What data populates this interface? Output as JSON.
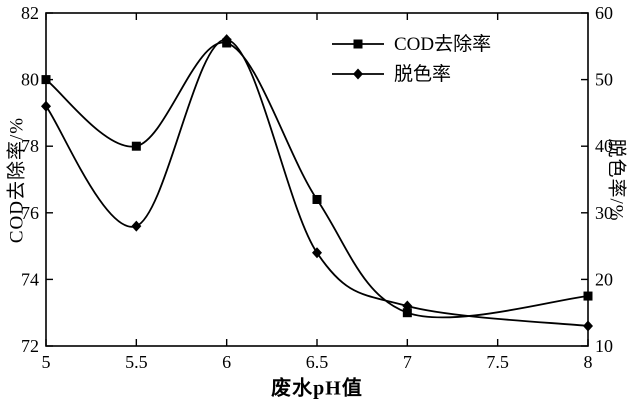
{
  "labels": {
    "xlabel": "废水pH值",
    "left_ylabel": "COD去除率/%",
    "right_ylabel": "脱色率/%"
  },
  "chart_data": {
    "type": "line",
    "title": "",
    "xlabel": "废水pH值",
    "xlim": [
      5,
      8
    ],
    "x_ticks": [
      5,
      5.5,
      6,
      6.5,
      7,
      7.5,
      8
    ],
    "x_tick_labels": [
      "5",
      "5.5",
      "6",
      "6.5",
      "7",
      "7.5",
      "8"
    ],
    "left_axis": {
      "label": "COD去除率/%",
      "lim": [
        72,
        82
      ],
      "ticks": [
        72,
        74,
        76,
        78,
        80,
        82
      ]
    },
    "right_axis": {
      "label": "脱色率/%",
      "lim": [
        10,
        60
      ],
      "ticks": [
        10,
        20,
        30,
        40,
        50,
        60
      ]
    },
    "x": [
      5,
      5.5,
      6,
      6.5,
      7,
      8
    ],
    "series": [
      {
        "name": "COD去除率",
        "axis": "left",
        "marker": "square",
        "color": "#000000",
        "values": [
          80,
          78,
          81.1,
          76.4,
          73,
          73.5
        ]
      },
      {
        "name": "脱色率",
        "axis": "right",
        "marker": "diamond",
        "color": "#000000",
        "values": [
          46,
          28,
          56,
          24,
          16,
          13
        ]
      }
    ],
    "legend": {
      "position": "inside-top-center-right",
      "entries": [
        "COD去除率",
        "脱色率"
      ]
    },
    "grid": false,
    "background": "#ffffff",
    "line_color": "#000000"
  }
}
